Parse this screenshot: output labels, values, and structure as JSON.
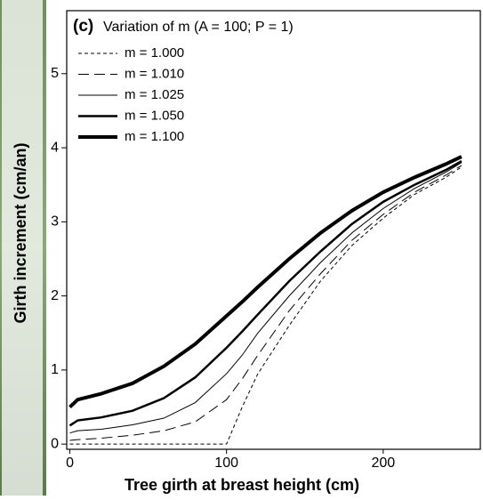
{
  "chart_data": {
    "type": "line",
    "panel_label": "(c)",
    "title": "Variation of m (A = 100; P = 1)",
    "x_label": "Tree girth at breast height (cm)",
    "y_label": "Girth increment (cm/an)",
    "x": [
      0,
      5,
      20,
      40,
      60,
      80,
      100,
      110,
      120,
      140,
      160,
      180,
      200,
      220,
      240,
      250
    ],
    "series": [
      {
        "name": "m = 1.000",
        "color": "#000000",
        "dash": "4,3",
        "width": 1,
        "values": [
          0,
          0,
          0,
          0,
          0,
          0,
          0,
          0.5,
          0.95,
          1.6,
          2.2,
          2.68,
          3.05,
          3.37,
          3.6,
          3.74
        ]
      },
      {
        "name": "m = 1.010",
        "color": "#000000",
        "dash": "12,6",
        "width": 1,
        "values": [
          0.05,
          0.06,
          0.08,
          0.12,
          0.18,
          0.3,
          0.6,
          0.88,
          1.2,
          1.8,
          2.3,
          2.75,
          3.1,
          3.4,
          3.63,
          3.76
        ]
      },
      {
        "name": "m = 1.025",
        "color": "#000000",
        "dash": "none",
        "width": 1,
        "values": [
          0.15,
          0.18,
          0.2,
          0.26,
          0.35,
          0.56,
          0.95,
          1.2,
          1.5,
          2.0,
          2.45,
          2.85,
          3.18,
          3.45,
          3.67,
          3.8
        ]
      },
      {
        "name": "m = 1.050",
        "color": "#000000",
        "dash": "none",
        "width": 2.5,
        "values": [
          0.25,
          0.32,
          0.36,
          0.45,
          0.62,
          0.9,
          1.3,
          1.52,
          1.75,
          2.2,
          2.6,
          2.97,
          3.27,
          3.5,
          3.7,
          3.82
        ]
      },
      {
        "name": "m = 1.100",
        "color": "#000000",
        "dash": "none",
        "width": 4,
        "values": [
          0.5,
          0.6,
          0.68,
          0.82,
          1.05,
          1.35,
          1.73,
          1.92,
          2.12,
          2.5,
          2.85,
          3.15,
          3.4,
          3.6,
          3.78,
          3.88
        ]
      }
    ],
    "xlim": [
      -2,
      262
    ],
    "xticks": [
      0,
      100,
      200
    ],
    "ylim": [
      -0.07,
      5.85
    ],
    "yticks": [
      0,
      1,
      2,
      3,
      4,
      5
    ],
    "legend": "top-left"
  }
}
